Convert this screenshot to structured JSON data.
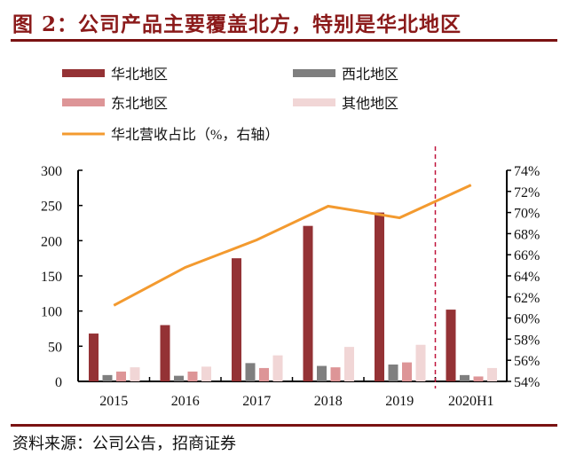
{
  "title": "图 2：公司产品主要覆盖北方，特别是华北地区",
  "source": "资料来源：公司公告，招商证券",
  "colors": {
    "title": "#8B1A1A",
    "north": "#943235",
    "northwest": "#7f7f7f",
    "northeast": "#dd9597",
    "other": "#f1d6d6",
    "line": "#f39a2f",
    "divider": "#c0143c"
  },
  "chart_data": {
    "type": "bar",
    "categories": [
      "2015",
      "2016",
      "2017",
      "2018",
      "2019",
      "2020H1"
    ],
    "series": [
      {
        "name": "华北地区",
        "type": "bar",
        "axis": "left",
        "values": [
          68,
          80,
          175,
          221,
          240,
          102
        ]
      },
      {
        "name": "西北地区",
        "type": "bar",
        "axis": "left",
        "values": [
          9,
          8,
          26,
          22,
          24,
          9
        ]
      },
      {
        "name": "东北地区",
        "type": "bar",
        "axis": "left",
        "values": [
          14,
          14,
          19,
          20,
          27,
          7
        ]
      },
      {
        "name": "其他地区",
        "type": "bar",
        "axis": "left",
        "values": [
          20,
          21,
          37,
          49,
          52,
          19
        ]
      },
      {
        "name": "华北营收占比（%，右轴）",
        "type": "line",
        "axis": "right",
        "values": [
          61.2,
          64.8,
          67.4,
          70.6,
          69.5,
          72.6
        ]
      }
    ],
    "ylim": [
      0,
      300
    ],
    "y_ticks": [
      "0",
      "50",
      "100",
      "150",
      "200",
      "250",
      "300"
    ],
    "y2lim": [
      54,
      74
    ],
    "y2_ticks": [
      "54%",
      "56%",
      "58%",
      "60%",
      "62%",
      "64%",
      "66%",
      "68%",
      "70%",
      "72%",
      "74%"
    ],
    "legend_position": "top",
    "grid": false,
    "annotation": "dashed vertical divider between 2019 and 2020H1"
  }
}
